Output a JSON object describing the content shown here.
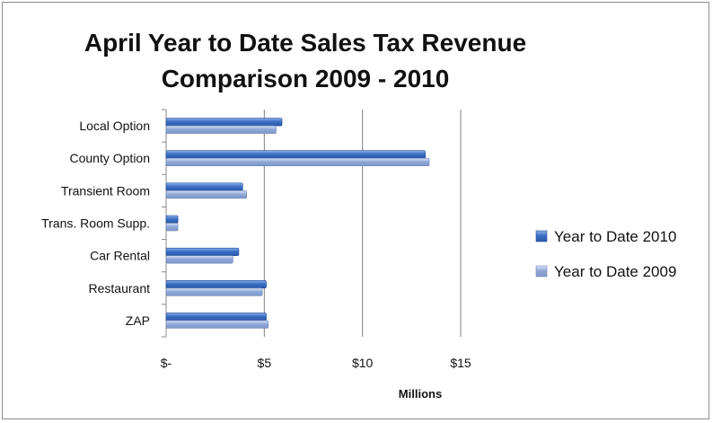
{
  "chart_data": {
    "type": "bar",
    "orientation": "horizontal",
    "title": "April Year to Date Sales Tax Revenue Comparison 2009 - 2010",
    "title_lines": [
      "April Year to Date Sales Tax Revenue",
      "Comparison 2009 - 2010"
    ],
    "categories": [
      "Local Option",
      "County Option",
      "Transient Room",
      "Trans. Room Supp.",
      "Car Rental",
      "Restaurant",
      "ZAP"
    ],
    "series": [
      {
        "name": "Year to Date 2010",
        "color": "#3b6fc4",
        "values": [
          5.9,
          13.2,
          3.9,
          0.6,
          3.7,
          5.1,
          5.1
        ]
      },
      {
        "name": "Year to Date 2009",
        "color": "#8fa8d8",
        "values": [
          5.6,
          13.4,
          4.1,
          0.6,
          3.4,
          4.9,
          5.2
        ]
      }
    ],
    "xlabel": "Millions",
    "xlim": [
      0,
      15
    ],
    "xticks": [
      0,
      5,
      10,
      15
    ],
    "xtick_labels": [
      "$-",
      "$5",
      "$10",
      "$15"
    ],
    "grid": "vertical major",
    "legend_position": "right"
  }
}
